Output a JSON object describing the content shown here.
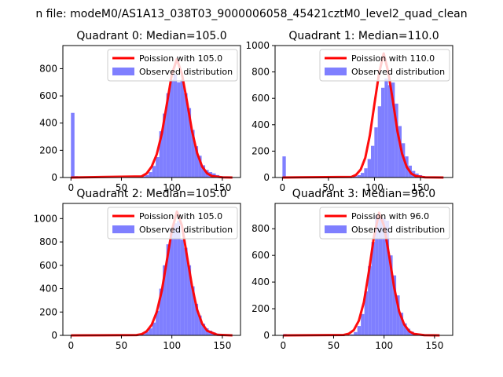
{
  "figure": {
    "suptitle": "n file: modeM0/AS1A13_038T03_9000006058_45421cztM0_level2_quad_clean"
  },
  "colors": {
    "hist": "#7f7fff",
    "poisson": "#ff0000",
    "axis": "#000000",
    "background": "#ffffff"
  },
  "chart_data": [
    {
      "type": "bar",
      "title": "Quadrant 0: Median=105.0",
      "xlim": [
        -8,
        168
      ],
      "ylim": [
        0,
        970
      ],
      "xticks": [
        0,
        50,
        100,
        150
      ],
      "yticks": [
        0,
        200,
        400,
        600,
        800
      ],
      "legend": {
        "placement": "top-right",
        "labels": [
          "Poission with 105.0",
          "Observed distribution"
        ]
      },
      "bins": {
        "edges": [
          0,
          3.5,
          7,
          10.5,
          14,
          17.5,
          21,
          24.5,
          28,
          31.5,
          35,
          38.5,
          42,
          45.5,
          49,
          52.5,
          56,
          59.5,
          63,
          66.5,
          70,
          73.5,
          77,
          80.5,
          84,
          87.5,
          91,
          94.5,
          98,
          101.5,
          105,
          108.5,
          112,
          115.5,
          119,
          122.5,
          126,
          129.5,
          133,
          136.5,
          140,
          143.5,
          147,
          150.5,
          154,
          157.5,
          161
        ],
        "counts": [
          475,
          10,
          6,
          5,
          4,
          4,
          3,
          3,
          3,
          3,
          3,
          3,
          3,
          3,
          3,
          3,
          3,
          3,
          3,
          5,
          8,
          18,
          40,
          85,
          150,
          340,
          470,
          620,
          720,
          760,
          700,
          720,
          620,
          510,
          350,
          230,
          160,
          90,
          55,
          40,
          30,
          18,
          10,
          6,
          3,
          2
        ]
      },
      "poisson_curve": {
        "x": [
          0,
          70,
          75,
          80,
          85,
          90,
          95,
          100,
          105,
          110,
          115,
          120,
          125,
          130,
          135,
          140,
          150,
          160
        ],
        "y": [
          0,
          8,
          30,
          80,
          170,
          320,
          540,
          760,
          870,
          760,
          560,
          340,
          180,
          80,
          30,
          10,
          2,
          0
        ]
      }
    },
    {
      "type": "bar",
      "title": "Quadrant 1: Median=110.0",
      "xlim": [
        -8,
        185
      ],
      "ylim": [
        0,
        1000
      ],
      "xticks": [
        0,
        50,
        100,
        150
      ],
      "yticks": [
        0,
        200,
        400,
        600,
        800,
        1000
      ],
      "legend": {
        "placement": "top-right",
        "labels": [
          "Poission with 110.0",
          "Observed distribution"
        ]
      },
      "bins": {
        "edges": [
          0,
          3.7,
          7.4,
          11.1,
          14.8,
          18.5,
          22.2,
          25.9,
          29.6,
          33.3,
          37,
          40.7,
          44.4,
          48.1,
          51.8,
          55.5,
          59.2,
          62.9,
          66.6,
          70.3,
          74,
          77.7,
          81.4,
          85.1,
          88.8,
          92.5,
          96.2,
          99.9,
          103.6,
          107.3,
          111,
          114.7,
          118.4,
          122.1,
          125.8,
          129.5,
          133.2,
          136.9,
          140.6,
          144.3,
          148,
          151.7,
          155.4,
          159.1,
          162.8,
          166.5,
          170.2,
          173.9,
          177.6
        ],
        "counts": [
          160,
          5,
          4,
          3,
          3,
          3,
          3,
          3,
          3,
          3,
          3,
          3,
          3,
          3,
          3,
          3,
          3,
          3,
          3,
          4,
          6,
          10,
          18,
          35,
          70,
          140,
          240,
          380,
          540,
          680,
          750,
          700,
          720,
          560,
          390,
          260,
          160,
          90,
          50,
          30,
          18,
          10,
          6,
          4,
          3,
          2,
          2,
          2
        ]
      },
      "poisson_curve": {
        "x": [
          0,
          75,
          80,
          85,
          90,
          95,
          100,
          105,
          110,
          115,
          120,
          125,
          130,
          135,
          140,
          145,
          155,
          175
        ],
        "y": [
          0,
          5,
          20,
          60,
          150,
          320,
          560,
          790,
          940,
          800,
          580,
          350,
          180,
          80,
          30,
          10,
          2,
          0
        ]
      }
    },
    {
      "type": "bar",
      "title": "Quadrant 2: Median=105.0",
      "xlim": [
        -8,
        168
      ],
      "ylim": [
        0,
        1130
      ],
      "xticks": [
        0,
        50,
        100,
        150
      ],
      "yticks": [
        0,
        200,
        400,
        600,
        800,
        1000
      ],
      "legend": {
        "placement": "top-right",
        "labels": [
          "Poission with 105.0",
          "Observed distribution"
        ]
      },
      "bins": {
        "edges": [
          0,
          3.5,
          7,
          10.5,
          14,
          17.5,
          21,
          24.5,
          28,
          31.5,
          35,
          38.5,
          42,
          45.5,
          49,
          52.5,
          56,
          59.5,
          63,
          66.5,
          70,
          73.5,
          77,
          80.5,
          84,
          87.5,
          91,
          94.5,
          98,
          101.5,
          105,
          108.5,
          112,
          115.5,
          119,
          122.5,
          126,
          129.5,
          133,
          136.5,
          140,
          143.5,
          147,
          150.5,
          154,
          157.5
        ],
        "counts": [
          3,
          3,
          3,
          3,
          3,
          3,
          3,
          3,
          3,
          3,
          3,
          3,
          3,
          3,
          3,
          3,
          3,
          3,
          3,
          5,
          12,
          30,
          60,
          110,
          210,
          400,
          600,
          780,
          920,
          960,
          980,
          820,
          750,
          600,
          420,
          270,
          170,
          100,
          60,
          40,
          25,
          15,
          8,
          5,
          3
        ]
      },
      "poisson_curve": {
        "x": [
          0,
          65,
          70,
          75,
          80,
          85,
          90,
          95,
          100,
          105,
          110,
          115,
          120,
          125,
          130,
          135,
          145,
          160
        ],
        "y": [
          0,
          3,
          10,
          35,
          90,
          200,
          380,
          640,
          900,
          1060,
          940,
          680,
          420,
          220,
          100,
          40,
          5,
          0
        ]
      }
    },
    {
      "type": "bar",
      "title": "Quadrant 3: Median=96.0",
      "xlim": [
        -8,
        168
      ],
      "ylim": [
        0,
        990
      ],
      "xticks": [
        0,
        50,
        100,
        150
      ],
      "yticks": [
        0,
        200,
        400,
        600,
        800
      ],
      "legend": {
        "placement": "top-right",
        "labels": [
          "Poission with 96.0",
          "Observed distribution"
        ]
      },
      "bins": {
        "edges": [
          0,
          3.5,
          7,
          10.5,
          14,
          17.5,
          21,
          24.5,
          28,
          31.5,
          35,
          38.5,
          42,
          45.5,
          49,
          52.5,
          56,
          59.5,
          63,
          66.5,
          70,
          73.5,
          77,
          80.5,
          84,
          87.5,
          91,
          94.5,
          98,
          101.5,
          105,
          108.5,
          112,
          115.5,
          119,
          122.5,
          126,
          129.5,
          133,
          136.5,
          140,
          143.5,
          147,
          150.5,
          154
        ],
        "counts": [
          10,
          4,
          3,
          3,
          3,
          3,
          3,
          3,
          3,
          3,
          3,
          3,
          3,
          3,
          3,
          3,
          3,
          3,
          3,
          8,
          25,
          70,
          160,
          330,
          520,
          700,
          900,
          880,
          880,
          860,
          600,
          450,
          300,
          170,
          90,
          50,
          28,
          16,
          9,
          5,
          3,
          2,
          2,
          2
        ]
      },
      "poisson_curve": {
        "x": [
          0,
          60,
          65,
          70,
          75,
          80,
          85,
          90,
          95,
          100,
          105,
          110,
          115,
          120,
          125,
          130,
          140,
          155
        ],
        "y": [
          0,
          3,
          12,
          40,
          110,
          250,
          480,
          740,
          920,
          820,
          600,
          360,
          180,
          80,
          30,
          10,
          2,
          0
        ]
      }
    }
  ]
}
